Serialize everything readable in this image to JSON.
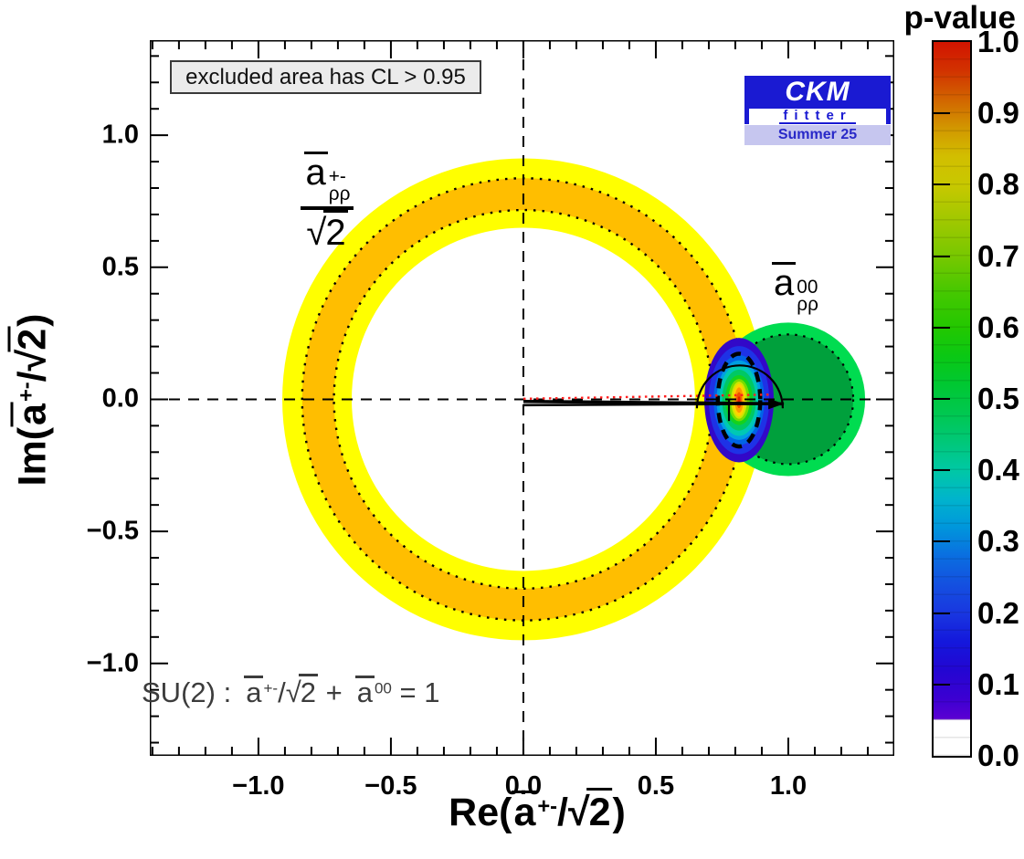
{
  "legend_box": "excluded area has CL > 0.95",
  "logo": {
    "top": "CKM",
    "mid": "fitter",
    "bottom": "Summer 25"
  },
  "labels": {
    "ring": {
      "base": "a",
      "sup": "+-",
      "sub": "ρρ",
      "den_root": "√",
      "den": "2"
    },
    "circle": {
      "base": "a",
      "sup": "00",
      "sub": "ρρ"
    },
    "su2": {
      "prefix": "SU(2) :",
      "a1": "a",
      "a1sup": "+-",
      "slash": "/",
      "root": "√",
      "two": "2",
      "plus": "+",
      "a2": "a",
      "a2sup": "00",
      "equals": "= 1"
    },
    "xtitle": {
      "prefix": "Re(",
      "base": "a",
      "sup": "+-",
      "slash": "/",
      "root": "√",
      "two": "2",
      "suffix": ")"
    },
    "ytitle": {
      "prefix": "Im(",
      "base": "a",
      "sup": "+-",
      "slash": "/",
      "root": "√",
      "two": "2",
      "suffix": ")"
    }
  },
  "colorbar": {
    "title": "p-value",
    "tick_labels": [
      "1.0",
      "0.9",
      "0.8",
      "0.7",
      "0.6",
      "0.5",
      "0.4",
      "0.3",
      "0.2",
      "0.1",
      "0.0"
    ],
    "inner_tick_values": [
      0.9,
      0.8,
      0.7,
      0.6,
      0.5,
      0.4,
      0.3,
      0.2,
      0.1
    ],
    "gradient_stops": [
      [
        0.0,
        "#ffffff"
      ],
      [
        0.05,
        "#ffffff"
      ],
      [
        0.052,
        "#5a00d2"
      ],
      [
        0.08,
        "#3c00d2"
      ],
      [
        0.12,
        "#2306d2"
      ],
      [
        0.16,
        "#1418dc"
      ],
      [
        0.2,
        "#1937e0"
      ],
      [
        0.24,
        "#1450e0"
      ],
      [
        0.28,
        "#0a6ee0"
      ],
      [
        0.32,
        "#0096dc"
      ],
      [
        0.36,
        "#00b4cc"
      ],
      [
        0.4,
        "#00c8a5"
      ],
      [
        0.44,
        "#00c878"
      ],
      [
        0.48,
        "#00c850"
      ],
      [
        0.52,
        "#00c832"
      ],
      [
        0.56,
        "#0ac814"
      ],
      [
        0.6,
        "#23c800"
      ],
      [
        0.65,
        "#46c800"
      ],
      [
        0.7,
        "#78c800"
      ],
      [
        0.75,
        "#a0c800"
      ],
      [
        0.8,
        "#c8c800"
      ],
      [
        0.84,
        "#d2be00"
      ],
      [
        0.88,
        "#d29600"
      ],
      [
        0.92,
        "#d26400"
      ],
      [
        0.96,
        "#d23200"
      ],
      [
        1.0,
        "#d21400"
      ]
    ]
  },
  "chart_data": {
    "type": "contour",
    "title": "",
    "xlabel": "Re(a̅⁺⁻/√2)",
    "ylabel": "Im(a̅⁺⁻/√2)",
    "colorbar_label": "p-value",
    "colorbar_range": [
      0.0,
      1.0
    ],
    "xlim": [
      -1.41,
      1.4
    ],
    "ylim": [
      -1.35,
      1.36
    ],
    "x_major_ticks": [
      -1.0,
      -0.5,
      0.0,
      0.5,
      1.0
    ],
    "x_tick_labels": [
      "−1.0",
      "−0.5",
      "0.0",
      "0.5",
      "1.0"
    ],
    "y_major_ticks": [
      -1.0,
      -0.5,
      0.0,
      0.5,
      1.0
    ],
    "y_tick_labels": [
      "−1.0",
      "−0.5",
      "0.0",
      "0.5",
      "1.0"
    ],
    "minor_step": 0.1,
    "x_minor_range": [
      -1.4,
      1.4
    ],
    "y_minor_range": [
      -1.3,
      1.3
    ],
    "crosshair": {
      "x": 0,
      "y": 0
    },
    "ring_constraint": {
      "label": "a̅⁺⁻ρρ/√2",
      "center": [
        0,
        0
      ],
      "r_outer": 0.91,
      "r_band_outer": 0.835,
      "r_band_inner": 0.715,
      "r_inner": 0.648,
      "fill_outer": "#ffff00",
      "fill_band": "#ffbe00"
    },
    "circle_constraint": {
      "label": "a̅⁰⁰ρρ",
      "center": [
        1.0,
        0
      ],
      "r_outer": 0.29,
      "r_inner": 0.245,
      "fill_outer": "#00dc50",
      "fill_inner": "#00a03c"
    },
    "pvalue_blob": {
      "center": [
        0.814,
        -0.003
      ],
      "layers": [
        [
          0.131,
          0.235,
          "#3208c8"
        ],
        [
          0.114,
          0.204,
          "#1e32e6"
        ],
        [
          0.096,
          0.17,
          "#0064e6"
        ],
        [
          0.085,
          0.15,
          "#00a0e1"
        ],
        [
          0.075,
          0.135,
          "#00c8b4"
        ],
        [
          0.064,
          0.115,
          "#00c864"
        ],
        [
          0.052,
          0.094,
          "#14d21e"
        ],
        [
          0.04,
          0.08,
          "#78dc00"
        ],
        [
          0.03,
          0.07,
          "#cde600"
        ],
        [
          0.023,
          0.062,
          "#ffd200"
        ],
        [
          0.016,
          0.048,
          "#ff9600"
        ],
        [
          0.01,
          0.03,
          "#f05000"
        ],
        [
          0.005,
          0.014,
          "#dc1e00"
        ]
      ],
      "dashed_contour": [
        0.08,
        0.175
      ]
    },
    "triangle": {
      "lines": [
        [
          0,
          -0.008,
          0.983,
          -0.017
        ],
        [
          0,
          -0.022,
          0.983,
          -0.017
        ]
      ],
      "red_line": [
        0,
        0.002,
        0.94,
        0.018
      ],
      "arc": {
        "center": [
          0.817,
          -0.034
        ],
        "r": 0.162
      },
      "tick": [
        0.776,
        0.0,
        0.776,
        -0.082
      ],
      "arrow_tip": [
        0.983,
        -0.017
      ]
    },
    "su2_relation": "SU(2) :  a̅⁺⁻/√2 +  a̅⁰⁰ = 1",
    "exclusion_note": "excluded area has CL > 0.95",
    "fit_label": "CKM fitter Summer 25"
  }
}
